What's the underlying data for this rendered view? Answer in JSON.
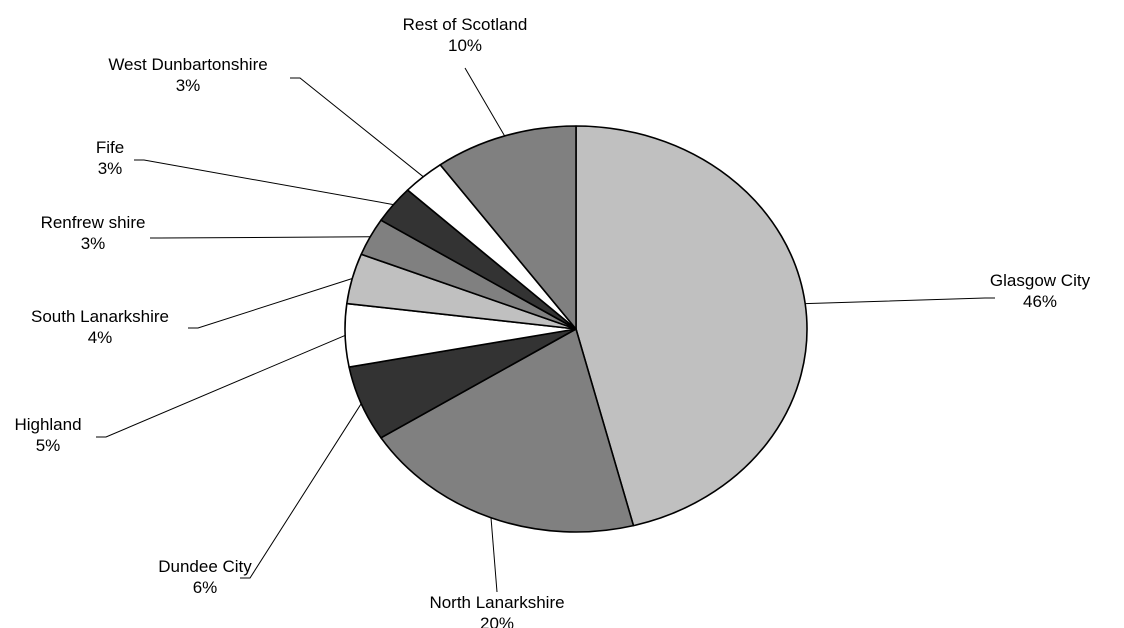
{
  "chart_data": {
    "type": "pie",
    "title": "",
    "slices": [
      {
        "label": "Glasgow  City",
        "value": 46,
        "value_label": "46%",
        "color": "#c0c0c0"
      },
      {
        "label": "North Lanarkshire",
        "value": 20,
        "value_label": "20%",
        "color": "#808080"
      },
      {
        "label": "Dundee City",
        "value": 6,
        "value_label": "6%",
        "color": "#333333"
      },
      {
        "label": "Highland",
        "value": 5,
        "value_label": "5%",
        "color": "#ffffff"
      },
      {
        "label": "South Lanarkshire",
        "value": 4,
        "value_label": "4%",
        "color": "#c0c0c0"
      },
      {
        "label": "Renfrew shire",
        "value": 3,
        "value_label": "3%",
        "color": "#808080"
      },
      {
        "label": "Fife",
        "value": 3,
        "value_label": "3%",
        "color": "#333333"
      },
      {
        "label": "West Dunbartonshire",
        "value": 3,
        "value_label": "3%",
        "color": "#ffffff"
      },
      {
        "label": "Rest of Scotland",
        "value": 10,
        "value_label": "10%",
        "color": "#808080"
      }
    ],
    "start_position": "12 o'clock, clockwise",
    "labels_outside_with_leader_lines": true,
    "legend": "none"
  }
}
